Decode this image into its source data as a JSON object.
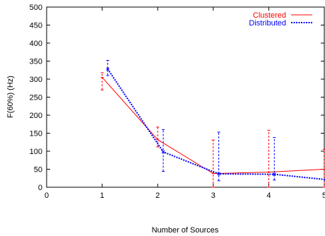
{
  "chart_data": {
    "type": "line",
    "xlabel": "Number of Sources",
    "ylabel": "F(60%) (Hz)",
    "xlim": [
      0,
      5
    ],
    "ylim": [
      0,
      500
    ],
    "xticks": [
      0,
      1,
      2,
      3,
      4,
      5
    ],
    "yticks": [
      0,
      50,
      100,
      150,
      200,
      250,
      300,
      350,
      400,
      450,
      500
    ],
    "grid": false,
    "legend_position": "top-right",
    "error_bars": true,
    "series": [
      {
        "name": "Clustered",
        "color": "#ff0000",
        "line_style": "solid",
        "x": [
          1,
          2,
          3,
          4,
          5
        ],
        "y": [
          305,
          132,
          38,
          42,
          50
        ],
        "err_low": [
          270,
          112,
          0,
          0,
          0
        ],
        "err_high": [
          318,
          167,
          131,
          158,
          105
        ]
      },
      {
        "name": "Distributed",
        "color": "#0000ff",
        "line_style": "dotted",
        "x": [
          1.1,
          2.1,
          3.1,
          4.1,
          5.1
        ],
        "y": [
          328,
          98,
          37,
          36,
          20
        ],
        "err_low": [
          310,
          44,
          18,
          20,
          0
        ],
        "err_high": [
          352,
          160,
          153,
          138,
          135
        ]
      }
    ]
  }
}
